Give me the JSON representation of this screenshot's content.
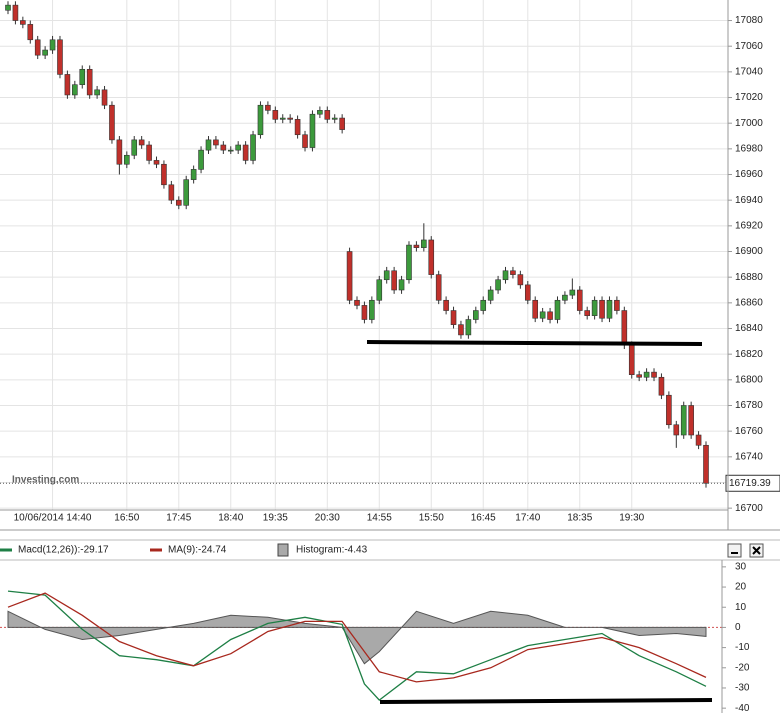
{
  "chart_data": [
    {
      "type": "candlestick",
      "watermark": "Investing.com",
      "categories": [
        null,
        null,
        null,
        null,
        null,
        null,
        "10/06/2014 14:40",
        null,
        null,
        null,
        null,
        null,
        null,
        null,
        null,
        null,
        "16:50",
        null,
        null,
        null,
        null,
        null,
        null,
        "17:45",
        null,
        null,
        null,
        null,
        null,
        null,
        "18:40",
        null,
        null,
        null,
        null,
        null,
        "19:35",
        null,
        null,
        null,
        null,
        null,
        null,
        "20:30",
        null,
        null,
        null,
        null,
        null,
        null,
        "14:55",
        null,
        null,
        null,
        null,
        null,
        null,
        "15:50",
        null,
        null,
        null,
        null,
        null,
        null,
        "16:45",
        null,
        null,
        null,
        null,
        null,
        "17:40",
        null,
        null,
        null,
        null,
        null,
        null,
        "18:35",
        null,
        null,
        null,
        null,
        null,
        null,
        "19:30",
        null,
        null,
        null,
        null,
        null,
        null,
        null,
        null,
        null,
        null
      ],
      "open": [
        17088,
        17092,
        17080,
        17077,
        17065,
        17053,
        17057,
        17065,
        17038,
        17022,
        17030,
        17042,
        17022,
        17026,
        17014,
        16987,
        16968,
        16975,
        16987,
        16983,
        16971,
        16968,
        16952,
        16940,
        16936,
        16956,
        16964,
        16979,
        16987,
        16983,
        16979,
        16979,
        16983,
        16971,
        16991,
        17014,
        17010,
        17003,
        17004,
        17003,
        16991,
        16981,
        17007,
        17010,
        17003,
        17004,
        16900,
        16862,
        16858,
        16847,
        16862,
        16878,
        16885,
        16870,
        16878,
        16905,
        16903,
        16909,
        16882,
        16862,
        16854,
        16843,
        16835,
        16847,
        16854,
        16862,
        16870,
        16878,
        16885,
        16882,
        16874,
        16862,
        16848,
        16853,
        16847,
        16862,
        16866,
        16870,
        16854,
        16850,
        16862,
        16848,
        16862,
        16854,
        16827,
        16804,
        16802,
        16806,
        16802,
        16788,
        16765,
        16757,
        16780,
        16757,
        16749
      ],
      "high": [
        17095,
        17095,
        17083,
        17080,
        17068,
        17060,
        17068,
        17068,
        17041,
        17033,
        17045,
        17045,
        17029,
        17029,
        17017,
        16990,
        16978,
        16990,
        16990,
        16986,
        16974,
        16971,
        16955,
        16943,
        16959,
        16967,
        16982,
        16990,
        16990,
        16986,
        16982,
        16986,
        16986,
        16994,
        17017,
        17017,
        17013,
        17007,
        17007,
        17006,
        16994,
        17010,
        17013,
        17013,
        17007,
        17007,
        16903,
        16865,
        16861,
        16865,
        16881,
        16888,
        16888,
        16881,
        16908,
        16908,
        16922,
        16912,
        16885,
        16865,
        16857,
        16846,
        16850,
        16857,
        16865,
        16873,
        16881,
        16888,
        16888,
        16885,
        16877,
        16865,
        16856,
        16856,
        16865,
        16869,
        16879,
        16873,
        16857,
        16865,
        16865,
        16865,
        16865,
        16857,
        16830,
        16807,
        16809,
        16809,
        16805,
        16791,
        16768,
        16783,
        16783,
        16760,
        16752
      ],
      "low": [
        17085,
        17077,
        17074,
        17062,
        17050,
        17050,
        17054,
        17035,
        17019,
        17019,
        17027,
        17019,
        17019,
        17011,
        16984,
        16960,
        16965,
        16972,
        16980,
        16968,
        16965,
        16949,
        16937,
        16933,
        16933,
        16953,
        16961,
        16976,
        16980,
        16976,
        16976,
        16976,
        16968,
        16968,
        16988,
        17007,
        17000,
        17000,
        17000,
        16988,
        16978,
        16978,
        17004,
        17000,
        17000,
        16992,
        16859,
        16855,
        16844,
        16844,
        16859,
        16875,
        16867,
        16867,
        16875,
        16900,
        16900,
        16879,
        16859,
        16851,
        16840,
        16832,
        16832,
        16844,
        16851,
        16859,
        16867,
        16875,
        16879,
        16871,
        16859,
        16845,
        16845,
        16844,
        16844,
        16859,
        16863,
        16851,
        16847,
        16847,
        16845,
        16845,
        16851,
        16824,
        16801,
        16799,
        16799,
        16799,
        16785,
        16762,
        16747,
        16754,
        16754,
        16746,
        16716
      ],
      "close": [
        17092,
        17080,
        17077,
        17065,
        17053,
        17057,
        17065,
        17038,
        17022,
        17030,
        17042,
        17022,
        17026,
        17014,
        16987,
        16968,
        16975,
        16987,
        16983,
        16971,
        16968,
        16952,
        16940,
        16936,
        16956,
        16964,
        16979,
        16987,
        16983,
        16979,
        16979,
        16983,
        16971,
        16991,
        17014,
        17010,
        17003,
        17004,
        17003,
        16991,
        16981,
        17007,
        17010,
        17003,
        17004,
        16995,
        16862,
        16858,
        16847,
        16862,
        16878,
        16885,
        16870,
        16878,
        16905,
        16903,
        16909,
        16882,
        16862,
        16854,
        16843,
        16835,
        16847,
        16854,
        16862,
        16870,
        16878,
        16885,
        16882,
        16874,
        16862,
        16848,
        16853,
        16847,
        16862,
        16866,
        16870,
        16854,
        16850,
        16862,
        16848,
        16862,
        16854,
        16827,
        16804,
        16802,
        16806,
        16802,
        16788,
        16765,
        16757,
        16780,
        16757,
        16749,
        16719.39
      ],
      "up_color": "#3c9a3c",
      "down_color": "#c0302b",
      "ylim": [
        16697,
        17096
      ],
      "yticks": [
        16700,
        16720,
        16740,
        16760,
        16780,
        16800,
        16820,
        16840,
        16860,
        16880,
        16900,
        16920,
        16940,
        16960,
        16980,
        17000,
        17020,
        17040,
        17060,
        17080
      ],
      "grid": true
    },
    {
      "type": "macd",
      "x": [
        0,
        5,
        10,
        15,
        20,
        25,
        30,
        35,
        40,
        45,
        48,
        50,
        55,
        60,
        65,
        70,
        75,
        80,
        85,
        90,
        94
      ],
      "series": [
        {
          "name": "Macd(12,26)):-29.17",
          "color": "#1e7f45",
          "values": [
            18,
            16,
            -1,
            -14,
            -16,
            -19,
            -6,
            2,
            5,
            1.5,
            -28,
            -36,
            -22,
            -23,
            -16,
            -9,
            -6,
            -3,
            -14,
            -22,
            -29.17
          ]
        },
        {
          "name": "MA(9):-24.74",
          "color": "#a8281e",
          "values": [
            10,
            17,
            6,
            -7,
            -14,
            -19,
            -13,
            -2,
            3,
            3,
            -12,
            -22,
            -27,
            -25,
            -20,
            -11,
            -8,
            -5,
            -10,
            -18,
            -24.74
          ]
        },
        {
          "name": "Histogram:-4.43",
          "color": "#a9a9a9",
          "kind": "area",
          "values": [
            8,
            -1,
            -6,
            -4,
            -1,
            2,
            6,
            5,
            2,
            0,
            -18,
            -12,
            8,
            2,
            8,
            6,
            0,
            0,
            -4,
            -3,
            -4.43
          ]
        }
      ],
      "ylim": [
        -42.4,
        33.4
      ],
      "yticks": [
        -40,
        -30,
        -20,
        -10,
        0,
        10,
        20,
        30
      ]
    }
  ]
}
